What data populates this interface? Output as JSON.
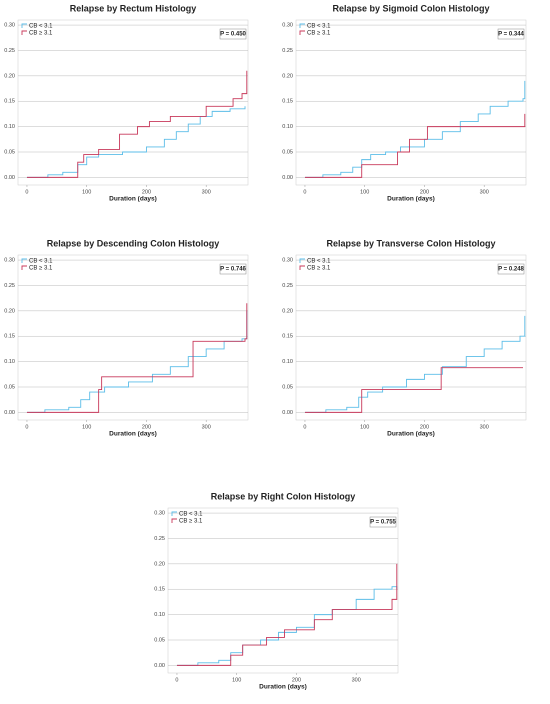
{
  "chart_data": [
    {
      "type": "line",
      "step": true,
      "grid": true,
      "title": "Relapse by Rectum Histology",
      "x_label": "Duration (days)",
      "annotation": "P = 0.450",
      "xlim": [
        -15,
        370
      ],
      "ylim": [
        -0.015,
        0.31
      ],
      "xticks": [
        0,
        100,
        200,
        300
      ],
      "yticks": [
        {
          "value": 0,
          "label": "0.00"
        },
        {
          "value": 0.05,
          "label": "0.05"
        },
        {
          "value": 0.1,
          "label": "0.10"
        },
        {
          "value": 0.15,
          "label": "0.15"
        },
        {
          "value": 0.2,
          "label": "0.20"
        },
        {
          "value": 0.25,
          "label": "0.25"
        },
        {
          "value": 0.3,
          "label": "0.30"
        }
      ],
      "series": [
        {
          "name": "CB < 3.1",
          "color": "#5bbde8",
          "x": [
            0,
            35,
            60,
            85,
            100,
            120,
            160,
            200,
            230,
            250,
            270,
            290,
            310,
            340,
            365
          ],
          "values": [
            0,
            0.005,
            0.01,
            0.025,
            0.04,
            0.045,
            0.05,
            0.06,
            0.075,
            0.09,
            0.105,
            0.12,
            0.13,
            0.135,
            0.14
          ]
        },
        {
          "name": "CB ≥ 3.1",
          "color": "#c8385a",
          "x": [
            0,
            85,
            95,
            120,
            155,
            185,
            205,
            240,
            300,
            345,
            360,
            368
          ],
          "values": [
            0,
            0.03,
            0.045,
            0.055,
            0.085,
            0.1,
            0.11,
            0.12,
            0.14,
            0.155,
            0.165,
            0.21
          ]
        }
      ]
    },
    {
      "type": "line",
      "step": true,
      "grid": true,
      "title": "Relapse by Sigmoid Colon Histology",
      "x_label": "Duration (days)",
      "annotation": "P = 0.344",
      "xlim": [
        -15,
        370
      ],
      "ylim": [
        -0.015,
        0.31
      ],
      "xticks": [
        0,
        100,
        200,
        300
      ],
      "yticks": [
        {
          "value": 0,
          "label": "0.00"
        },
        {
          "value": 0.05,
          "label": "0.05"
        },
        {
          "value": 0.1,
          "label": "0.10"
        },
        {
          "value": 0.15,
          "label": "0.15"
        },
        {
          "value": 0.2,
          "label": "0.20"
        },
        {
          "value": 0.25,
          "label": "0.25"
        },
        {
          "value": 0.3,
          "label": "0.30"
        }
      ],
      "series": [
        {
          "name": "CB < 3.1",
          "color": "#5bbde8",
          "x": [
            0,
            30,
            60,
            80,
            95,
            110,
            135,
            160,
            200,
            230,
            260,
            290,
            310,
            340,
            365,
            368
          ],
          "values": [
            0,
            0.005,
            0.01,
            0.02,
            0.035,
            0.045,
            0.05,
            0.06,
            0.075,
            0.09,
            0.11,
            0.125,
            0.14,
            0.15,
            0.155,
            0.19
          ]
        },
        {
          "name": "CB ≥ 3.1",
          "color": "#c8385a",
          "x": [
            0,
            95,
            155,
            175,
            205,
            368
          ],
          "values": [
            0,
            0.025,
            0.05,
            0.075,
            0.1,
            0.125
          ]
        }
      ]
    },
    {
      "type": "line",
      "step": true,
      "grid": true,
      "title": "Relapse by Descending Colon Histology",
      "x_label": "Duration (days)",
      "annotation": "P = 0.746",
      "xlim": [
        -15,
        370
      ],
      "ylim": [
        -0.015,
        0.31
      ],
      "xticks": [
        0,
        100,
        200,
        300
      ],
      "yticks": [
        {
          "value": 0,
          "label": "0.00"
        },
        {
          "value": 0.05,
          "label": "0.05"
        },
        {
          "value": 0.1,
          "label": "0.10"
        },
        {
          "value": 0.15,
          "label": "0.15"
        },
        {
          "value": 0.2,
          "label": "0.20"
        },
        {
          "value": 0.25,
          "label": "0.25"
        },
        {
          "value": 0.3,
          "label": "0.30"
        }
      ],
      "series": [
        {
          "name": "CB < 3.1",
          "color": "#5bbde8",
          "x": [
            0,
            30,
            70,
            90,
            105,
            130,
            170,
            210,
            240,
            270,
            300,
            330,
            360,
            368
          ],
          "values": [
            0,
            0.005,
            0.01,
            0.025,
            0.04,
            0.05,
            0.06,
            0.075,
            0.09,
            0.11,
            0.125,
            0.14,
            0.145,
            0.2
          ]
        },
        {
          "name": "CB ≥ 3.1",
          "color": "#c8385a",
          "x": [
            0,
            120,
            125,
            278,
            365,
            368
          ],
          "values": [
            0,
            0.045,
            0.07,
            0.14,
            0.145,
            0.215
          ]
        }
      ]
    },
    {
      "type": "line",
      "step": true,
      "grid": true,
      "title": "Relapse by Transverse Colon Histology",
      "x_label": "Duration (days)",
      "annotation": "P = 0.248",
      "xlim": [
        -15,
        370
      ],
      "ylim": [
        -0.015,
        0.31
      ],
      "xticks": [
        0,
        100,
        200,
        300
      ],
      "yticks": [
        {
          "value": 0,
          "label": "0.00"
        },
        {
          "value": 0.05,
          "label": "0.05"
        },
        {
          "value": 0.1,
          "label": "0.10"
        },
        {
          "value": 0.15,
          "label": "0.15"
        },
        {
          "value": 0.2,
          "label": "0.20"
        },
        {
          "value": 0.25,
          "label": "0.25"
        },
        {
          "value": 0.3,
          "label": "0.30"
        }
      ],
      "series": [
        {
          "name": "CB < 3.1",
          "color": "#5bbde8",
          "x": [
            0,
            35,
            70,
            90,
            105,
            130,
            170,
            200,
            230,
            270,
            300,
            330,
            360,
            368
          ],
          "values": [
            0,
            0.005,
            0.01,
            0.03,
            0.04,
            0.05,
            0.065,
            0.075,
            0.09,
            0.11,
            0.125,
            0.14,
            0.15,
            0.19
          ]
        },
        {
          "name": "CB ≥ 3.1",
          "color": "#c8385a",
          "x": [
            0,
            95,
            228,
            365
          ],
          "values": [
            0,
            0.045,
            0.088,
            0.088
          ]
        }
      ]
    },
    {
      "type": "line",
      "step": true,
      "grid": true,
      "title": "Relapse by Right Colon Histology",
      "x_label": "Duration (days)",
      "annotation": "P = 0.755",
      "xlim": [
        -15,
        370
      ],
      "ylim": [
        -0.015,
        0.31
      ],
      "xticks": [
        0,
        100,
        200,
        300
      ],
      "yticks": [
        {
          "value": 0,
          "label": "0.00"
        },
        {
          "value": 0.05,
          "label": "0.05"
        },
        {
          "value": 0.1,
          "label": "0.10"
        },
        {
          "value": 0.15,
          "label": "0.15"
        },
        {
          "value": 0.2,
          "label": "0.20"
        },
        {
          "value": 0.25,
          "label": "0.25"
        },
        {
          "value": 0.3,
          "label": "0.30"
        }
      ],
      "series": [
        {
          "name": "CB < 3.1",
          "color": "#5bbde8",
          "x": [
            0,
            35,
            70,
            90,
            110,
            140,
            170,
            200,
            230,
            260,
            300,
            330,
            360,
            368
          ],
          "values": [
            0,
            0.005,
            0.01,
            0.025,
            0.04,
            0.05,
            0.065,
            0.075,
            0.1,
            0.11,
            0.13,
            0.15,
            0.155,
            0.15
          ]
        },
        {
          "name": "CB ≥ 3.1",
          "color": "#c8385a",
          "x": [
            0,
            90,
            110,
            150,
            180,
            230,
            260,
            360,
            368
          ],
          "values": [
            0,
            0.02,
            0.04,
            0.055,
            0.07,
            0.09,
            0.11,
            0.13,
            0.2
          ]
        }
      ]
    }
  ]
}
